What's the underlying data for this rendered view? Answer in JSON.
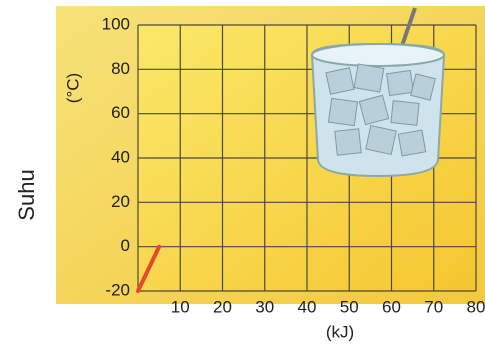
{
  "chart_data": {
    "type": "line",
    "y_label": "Suhu",
    "y_unit": "(°C)",
    "x_label": "(kJ)",
    "x": [
      0,
      5
    ],
    "series": [
      {
        "color": "#e5482a",
        "values": [
          -20,
          0
        ]
      }
    ],
    "xlim": [
      0,
      80
    ],
    "xticks": [
      10,
      20,
      30,
      40,
      50,
      60,
      70,
      80
    ],
    "ylim": [
      -20,
      100
    ],
    "yticks": [
      -20,
      0,
      20,
      40,
      60,
      80,
      100
    ],
    "grid": true
  }
}
